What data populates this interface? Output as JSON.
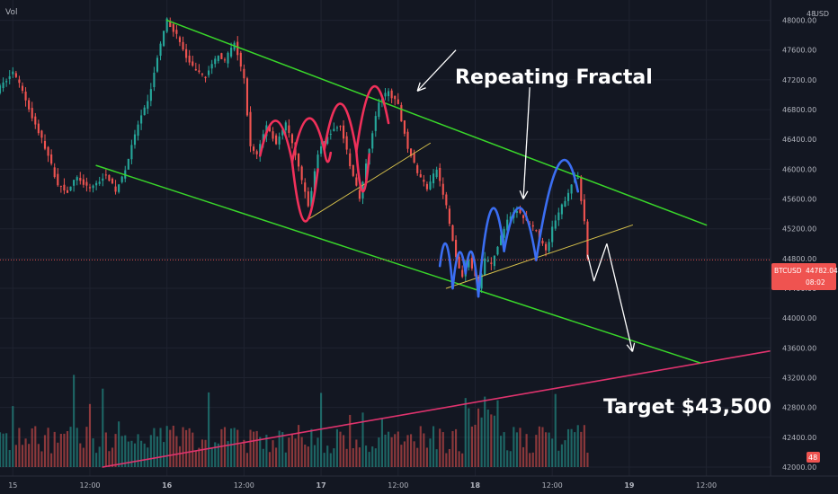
{
  "legend": {
    "vol_label": "Vol",
    "currency": "USD",
    "scale_top_fragment": "48"
  },
  "price_tag": {
    "symbol": "BTCUSD",
    "price": "44782.04",
    "countdown": "08:02",
    "color": "#ef5350"
  },
  "volume_tag": {
    "value": "48"
  },
  "annotations": {
    "title": "Repeating Fractal",
    "target": "Target $43,500"
  },
  "colors": {
    "background": "#131722",
    "grid": "#1f2330",
    "up": "#26a69a",
    "down": "#ef5350",
    "channel": "#39d62a",
    "support": "#d6c04b",
    "fractal_first": "#f0305a",
    "fractal_second": "#3b6ef2",
    "trendline": "#e0336e",
    "arrow": "#ffffff"
  },
  "chart_data": {
    "type": "candlestick",
    "ylim": [
      42000,
      48200
    ],
    "y_ticks": [
      48000,
      47600,
      47200,
      46800,
      46400,
      46000,
      45600,
      45200,
      44800,
      44400,
      44000,
      43600,
      43200,
      42800,
      42400,
      42000
    ],
    "y_tick_labels": [
      "48000.00",
      "47600.00",
      "47200.00",
      "46800.00",
      "46400.00",
      "46000.00",
      "45600.00",
      "45200.00",
      "44800.00",
      "44400.00",
      "44000.00",
      "43600.00",
      "43200.00",
      "42800.00",
      "42400.00",
      "42000.00"
    ],
    "x_ticks": [
      "15",
      "12:00",
      "16",
      "12:00",
      "17",
      "12:00",
      "18",
      "12:00",
      "19",
      "12:00"
    ],
    "x_tick_bold": [
      false,
      false,
      true,
      false,
      true,
      false,
      true,
      false,
      true,
      false
    ],
    "x_tick_hours": [
      0,
      12,
      24,
      36,
      48,
      60,
      72,
      84,
      96,
      108
    ],
    "x_range_hours": [
      -2,
      118
    ],
    "last_bar_hour": 89.5,
    "price_path": [
      [
        -2,
        47100
      ],
      [
        0,
        47300
      ],
      [
        1.5,
        47050
      ],
      [
        3,
        46700
      ],
      [
        5,
        46300
      ],
      [
        7,
        45800
      ],
      [
        8.5,
        45700
      ],
      [
        10,
        45900
      ],
      [
        11.5,
        45750
      ],
      [
        13,
        45800
      ],
      [
        14.5,
        45950
      ],
      [
        16,
        45700
      ],
      [
        17.5,
        46000
      ],
      [
        19.5,
        46600
      ],
      [
        21,
        46900
      ],
      [
        22.5,
        47500
      ],
      [
        24,
        48000
      ],
      [
        25.5,
        47800
      ],
      [
        27,
        47500
      ],
      [
        28.5,
        47300
      ],
      [
        30,
        47250
      ],
      [
        32,
        47550
      ],
      [
        33,
        47450
      ],
      [
        34.5,
        47700
      ],
      [
        36,
        47200
      ],
      [
        37,
        46300
      ],
      [
        38,
        46200
      ],
      [
        39.5,
        46600
      ],
      [
        41,
        46350
      ],
      [
        42.5,
        46600
      ],
      [
        44,
        46200
      ],
      [
        46,
        45500
      ],
      [
        47.5,
        46200
      ],
      [
        49,
        46450
      ],
      [
        51,
        46600
      ],
      [
        52.5,
        46050
      ],
      [
        54,
        45600
      ],
      [
        55.5,
        46300
      ],
      [
        57,
        46900
      ],
      [
        58.5,
        47050
      ],
      [
        60,
        46850
      ],
      [
        61.5,
        46300
      ],
      [
        63,
        45950
      ],
      [
        64.5,
        45750
      ],
      [
        66,
        46000
      ],
      [
        67.5,
        45500
      ],
      [
        69,
        44800
      ],
      [
        70,
        44550
      ],
      [
        71,
        44800
      ],
      [
        72.5,
        44400
      ],
      [
        73.5,
        44800
      ],
      [
        74.5,
        44700
      ],
      [
        76,
        45100
      ],
      [
        77,
        45300
      ],
      [
        78.5,
        45450
      ],
      [
        80,
        45300
      ],
      [
        81.5,
        45150
      ],
      [
        83,
        44900
      ],
      [
        84,
        45200
      ],
      [
        85.5,
        45500
      ],
      [
        87,
        45800
      ],
      [
        88,
        45900
      ],
      [
        89,
        45300
      ],
      [
        89.5,
        44800
      ]
    ],
    "volume": {
      "max": 1200,
      "trendline_price": [
        [
          14,
          42000
        ],
        [
          118,
          43560
        ]
      ]
    },
    "overlays": {
      "upper_channel": [
        [
          24,
          48000
        ],
        [
          108,
          45250
        ]
      ],
      "lower_channel": [
        [
          13,
          46050
        ],
        [
          107,
          43400
        ]
      ],
      "support_first": [
        [
          45.5,
          45300
        ],
        [
          65,
          46350
        ]
      ],
      "support_second": [
        [
          67.5,
          44400
        ],
        [
          96.5,
          45250
        ]
      ],
      "fractal_first": {
        "arcs": [
          [
            [
              38.5,
              46180
            ],
            [
              41,
              46650
            ],
            [
              43.5,
              46100
            ]
          ],
          [
            [
              43.5,
              46100
            ],
            [
              46,
              46680
            ],
            [
              48.5,
              46260
            ]
          ],
          [
            [
              48.5,
              46260
            ],
            [
              51,
              46880
            ],
            [
              53.5,
              46240
            ]
          ],
          [
            [
              53.5,
              46240
            ],
            [
              56,
              47100
            ],
            [
              58.5,
              46620
            ]
          ]
        ],
        "valleys": [
          [
            [
              43.5,
              46100
            ],
            [
              45.5,
              45300
            ],
            [
              47.5,
              46000
            ]
          ],
          [
            [
              48.5,
              46260
            ],
            [
              49,
              46100
            ],
            [
              49.5,
              46220
            ]
          ],
          [
            [
              53.5,
              46240
            ],
            [
              54.5,
              45700
            ],
            [
              55.5,
              46200
            ]
          ]
        ]
      },
      "fractal_second": {
        "arcs": [
          [
            [
              66.5,
              44700
            ],
            [
              67.5,
              44990
            ],
            [
              68.5,
              44400
            ]
          ],
          [
            [
              68.5,
              44400
            ],
            [
              69.5,
              44880
            ],
            [
              70.5,
              44600
            ]
          ],
          [
            [
              70.5,
              44600
            ],
            [
              71.5,
              44880
            ],
            [
              72.5,
              44290
            ]
          ],
          [
            [
              72.5,
              44290
            ],
            [
              74.5,
              45450
            ],
            [
              76.5,
              44900
            ]
          ],
          [
            [
              76.5,
              44900
            ],
            [
              79,
              45480
            ],
            [
              81.5,
              44780
            ]
          ],
          [
            [
              81.5,
              44780
            ],
            [
              85,
              46060
            ],
            [
              88,
              45700
            ]
          ]
        ]
      },
      "fractal_projection": [
        [
          89.5,
          44850
        ],
        [
          90.5,
          44500
        ],
        [
          91.5,
          44750
        ],
        [
          92.5,
          45000
        ]
      ],
      "projection_arrow": [
        [
          92.5,
          45000
        ],
        [
          96.5,
          43550
        ]
      ],
      "top_arrow": [
        [
          69,
          47600
        ],
        [
          63,
          47050
        ]
      ],
      "mid_arrow": [
        [
          80.5,
          47100
        ],
        [
          79.5,
          45600
        ]
      ],
      "current_price": 44782.04
    }
  }
}
